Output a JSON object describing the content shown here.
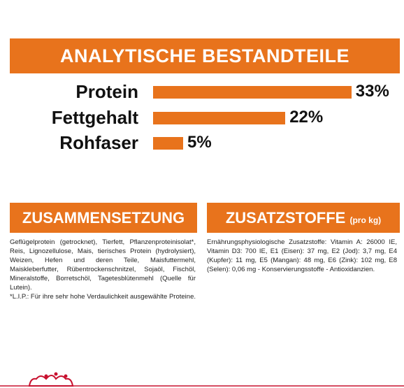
{
  "chart_data": {
    "type": "bar",
    "title": "ANALYTISCHE BESTANDTEILE",
    "categories": [
      "Protein",
      "Fettgehalt",
      "Rohfaser"
    ],
    "values": [
      33,
      22,
      5
    ],
    "value_labels": [
      "33%",
      "22%",
      "5%"
    ],
    "color": "#e8731c"
  },
  "composition": {
    "title": "ZUSAMMENSETZUNG",
    "text": "Geflügelprotein (getrocknet), Tierfett, Pflanzenproteinisolat*, Reis, Lignozellulose, Mais, tierisches Protein (hydrolysiert), Weizen, Hefen und deren Teile, Maisfuttermehl, Maiskleberfutter, Rübentrockenschnitzel, Sojaöl, Fischöl, Mineralstoffe, Borretschöl, Tagetesblütenmehl (Quelle für Lutein).",
    "footnote": "*L.I.P.: Für ihre sehr hohe Verdaulichkeit ausgewählte Proteine."
  },
  "additives": {
    "title": "ZUSATZSTOFFE",
    "unit": "(pro kg)",
    "text": "Ernährungsphysiologische Zusatzstoffe: Vitamin A: 26000 IE, Vitamin D3: 700 IE, E1 (Eisen): 37 mg, E2 (Jod): 3,7 mg, E4 (Kupfer): 11 mg, E5 (Mangan): 48 mg, E6 (Zink): 102 mg, E8 (Selen): 0,06 mg - Konservierungsstoffe - Antioxidanzien."
  }
}
